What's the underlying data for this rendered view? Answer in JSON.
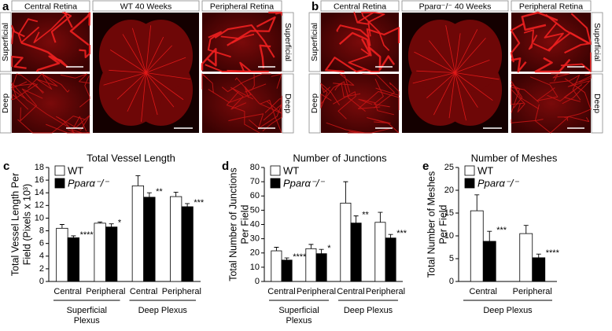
{
  "panels": [
    {
      "label": "a",
      "left_title": "Central Retina",
      "center_title": "WT 40 Weeks",
      "right_title": "Peripheral Retina",
      "rows": [
        "Superficial",
        "Deep"
      ]
    },
    {
      "label": "b",
      "left_title": "Central Retina",
      "center_title": "Pparα⁻/⁻ 40 Weeks",
      "right_title": "Peripheral Retina",
      "rows": [
        "Superficial",
        "Deep"
      ]
    }
  ],
  "chart_data": [
    {
      "type": "bar",
      "label": "c",
      "title": "Total Vessel Length",
      "ylabel": [
        "Total Vessel Length Per",
        "Field (Pixels x 10³)"
      ],
      "categories": [
        "Central",
        "Peripheral",
        "Central",
        "Peripheral"
      ],
      "group_labels": [
        [
          "Superficial",
          "Plexus"
        ],
        [
          "Deep Plexus"
        ]
      ],
      "series": [
        {
          "name": "WT",
          "color": "#ffffff",
          "values": [
            8.4,
            9.2,
            15.1,
            13.4
          ],
          "errors": [
            0.6,
            0.2,
            1.6,
            0.7
          ]
        },
        {
          "name": "Pparα⁻/⁻",
          "color": "#000000",
          "values": [
            6.9,
            8.6,
            13.3,
            11.8
          ],
          "errors": [
            0.3,
            0.5,
            0.7,
            0.5
          ]
        }
      ],
      "significance": [
        "****",
        "*",
        "**",
        "***"
      ],
      "ylim": [
        0,
        18
      ],
      "yticks": [
        0,
        2,
        4,
        6,
        8,
        10,
        12,
        14,
        16,
        18
      ],
      "legend": "upper left"
    },
    {
      "type": "bar",
      "label": "d",
      "title": "Number of Junctions",
      "ylabel": [
        "Total Number of Junctions",
        "Per Field"
      ],
      "categories": [
        "Central",
        "Peripheral",
        "Central",
        "Peripheral"
      ],
      "group_labels": [
        [
          "Superficial",
          "Plexus"
        ],
        [
          "Deep Plexus"
        ]
      ],
      "series": [
        {
          "name": "WT",
          "color": "#ffffff",
          "values": [
            21.5,
            23,
            55,
            41.5
          ],
          "errors": [
            2.5,
            3,
            15,
            7
          ]
        },
        {
          "name": "Pparα⁻/⁻",
          "color": "#000000",
          "values": [
            15,
            19.5,
            41,
            30.5
          ],
          "errors": [
            1.5,
            3,
            5,
            2.5
          ]
        }
      ],
      "significance": [
        "****",
        "*",
        "**",
        "***"
      ],
      "ylim": [
        0,
        80
      ],
      "yticks": [
        0,
        10,
        20,
        30,
        40,
        50,
        60,
        70,
        80
      ],
      "legend": "upper left"
    },
    {
      "type": "bar",
      "label": "e",
      "title": "Number of Meshes",
      "ylabel": [
        "Total Number of Meshes",
        "Per Field"
      ],
      "categories": [
        "Central",
        "Peripheral"
      ],
      "group_labels": [
        [
          "Deep Plexus"
        ]
      ],
      "series": [
        {
          "name": "WT",
          "color": "#ffffff",
          "values": [
            15.5,
            10.5
          ],
          "errors": [
            3.5,
            1.8
          ]
        },
        {
          "name": "Pparα⁻/⁻",
          "color": "#000000",
          "values": [
            8.8,
            5.2
          ],
          "errors": [
            2.2,
            0.8
          ]
        }
      ],
      "significance": [
        "***",
        "****"
      ],
      "ylim": [
        0,
        25
      ],
      "yticks": [
        0,
        5,
        10,
        15,
        20,
        25
      ],
      "legend": "upper left"
    }
  ]
}
